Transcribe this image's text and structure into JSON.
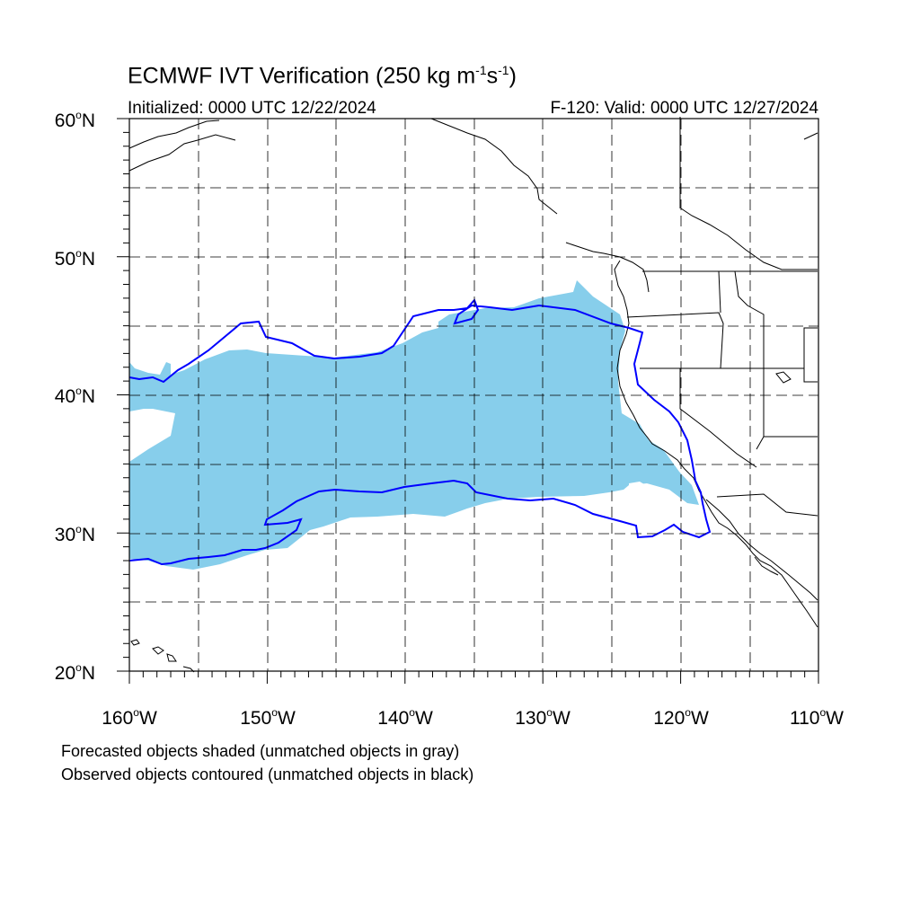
{
  "title": {
    "main": "ECMWF IVT Verification (250 kg m",
    "exp1": "-1",
    "mid": "s",
    "exp2": "-1",
    "end": ")"
  },
  "initialized": "Initialized: 0000 UTC 12/22/2024",
  "valid": "F-120: Valid: 0000 UTC 12/27/2024",
  "lat_labels": [
    {
      "value": "60",
      "suffix": "N"
    },
    {
      "value": "50",
      "suffix": "N"
    },
    {
      "value": "40",
      "suffix": "N"
    },
    {
      "value": "30",
      "suffix": "N"
    },
    {
      "value": "20",
      "suffix": "N"
    }
  ],
  "lon_labels": [
    {
      "value": "160",
      "suffix": "W"
    },
    {
      "value": "150",
      "suffix": "W"
    },
    {
      "value": "140",
      "suffix": "W"
    },
    {
      "value": "130",
      "suffix": "W"
    },
    {
      "value": "120",
      "suffix": "W"
    },
    {
      "value": "110",
      "suffix": "W"
    }
  ],
  "notes": [
    "Forecasted objects shaded (unmatched objects in gray)",
    "Observed objects contoured (unmatched objects in black)"
  ],
  "map": {
    "lat_range": [
      20,
      60
    ],
    "lon_range": [
      -160,
      -110
    ],
    "grid_spacing_deg": 5,
    "forecast_fill_color": "#87ceeb",
    "observed_contour_color": "#0000ff",
    "coastline_color": "#000000"
  }
}
